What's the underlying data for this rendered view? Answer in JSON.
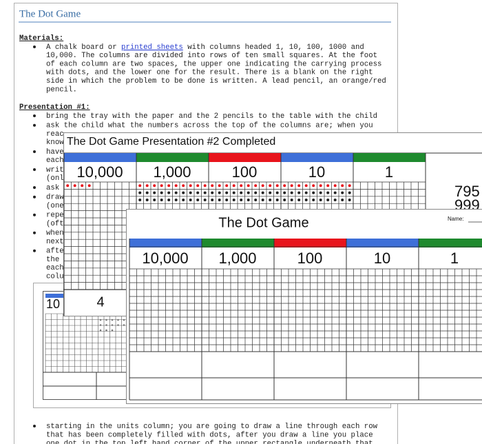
{
  "document": {
    "title": "The Dot Game",
    "materials_heading": "Materials:",
    "materials": {
      "before_link": "A chalk board or",
      "link": "printed sheets",
      "after_link": "with columns headed 1, 10, 100, 1000 and",
      "lines": [
        "10,000. The columns are divided into rows of ten small squares. At the foot",
        "of each column are two spaces, the upper one indicating the carrying process",
        "with dots, and the lower one for the result. There is a blank on the right",
        "side in which the problem to be done is written. A lead pencil, an orange/red",
        "pencil."
      ]
    },
    "presentation_heading": "Presentation #1:",
    "bullets": [
      [
        "bring the tray with the paper and the 2 pencils to the table with the child"
      ],
      [
        "ask the child what the numbers across the top of the columns are; when you",
        "reac",
        "know"
      ],
      [
        "have",
        "each"
      ],
      [
        "writ",
        "(onl"
      ],
      [
        "ask"
      ],
      [
        "draw",
        "(one"
      ],
      [
        "repe",
        "(oft"
      ],
      [
        "when",
        "next"
      ],
      [
        "afte",
        "the",
        "each",
        "colu"
      ]
    ],
    "final_bullet": [
      "starting in the units column; you are going to draw a line through each row",
      "that has been completely filled with dots, after you draw a line you place",
      "one dot in the top left hand corner of the upper rectangle underneath that"
    ]
  },
  "inset": {
    "column_label": "10"
  },
  "image_1": {
    "title": "The Dot Game Presentation #2  Completed",
    "columns": [
      "10,000",
      "1,000",
      "100",
      "10",
      "1"
    ],
    "side_numbers": [
      "795",
      "999"
    ],
    "result": "4"
  },
  "image_2": {
    "title": "The Dot Game",
    "name_label": "Name:",
    "columns": [
      "10,000",
      "1,000",
      "100",
      "10",
      "1"
    ]
  }
}
